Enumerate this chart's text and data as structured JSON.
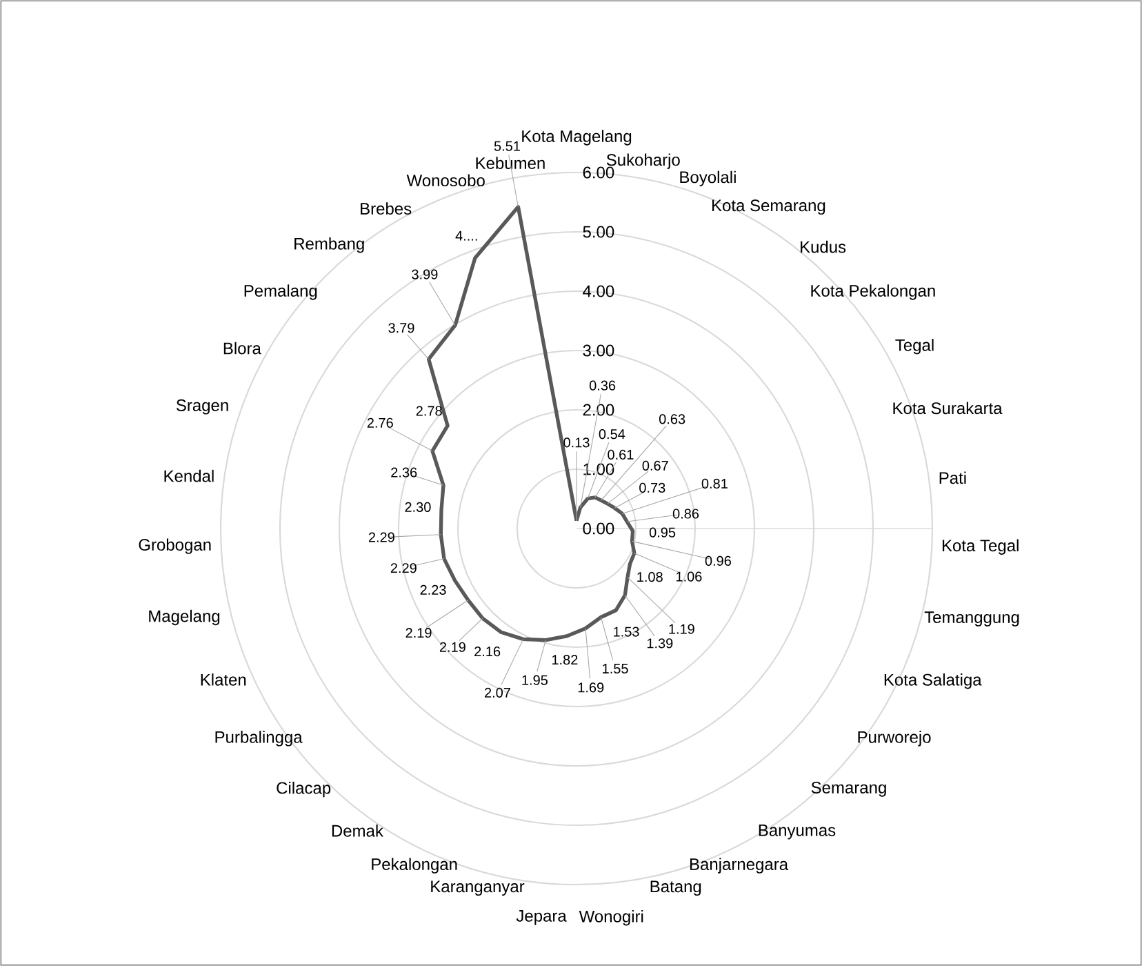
{
  "chart_data": {
    "type": "radar",
    "categories": [
      "Kota Magelang",
      "Sukoharjo",
      "Boyolali",
      "Kota Semarang",
      "Kudus",
      "Kota Pekalongan",
      "Tegal",
      "Kota Surakarta",
      "Pati",
      "Kota Tegal",
      "Temanggung",
      "Kota Salatiga",
      "Purworejo",
      "Semarang",
      "Banyumas",
      "Banjarnegara",
      "Batang",
      "Wonogiri",
      "Jepara",
      "Karanganyar",
      "Pekalongan",
      "Demak",
      "Cilacap",
      "Purbalingga",
      "Klaten",
      "Magelang",
      "Grobogan",
      "Kendal",
      "Sragen",
      "Blora",
      "Pemalang",
      "Rembang",
      "Brebes",
      "Wonosobo",
      "Kebumen"
    ],
    "series": [
      {
        "color": "#595959",
        "line_style": "solid",
        "values": [
          0.13,
          0.36,
          0.54,
          0.61,
          0.63,
          0.67,
          0.73,
          0.81,
          0.86,
          0.95,
          0.96,
          1.06,
          1.08,
          1.19,
          1.39,
          1.53,
          1.55,
          1.69,
          1.82,
          1.95,
          2.07,
          2.16,
          2.19,
          2.19,
          2.23,
          2.29,
          2.29,
          2.3,
          2.36,
          2.76,
          2.78,
          3.79,
          3.99,
          4.87,
          5.51
        ],
        "value_labels": [
          "0.13",
          "0.36",
          "0.54",
          "0.61",
          "0.63",
          "0.67",
          "0.73",
          "0.81",
          "0.86",
          "0.95",
          "0.96",
          "1.06",
          "1.08",
          "1.19",
          "1.39",
          "1.53",
          "1.55",
          "1.69",
          "1.82",
          "1.95",
          "2.07",
          "2.16",
          "2.19",
          "2.19",
          "2.23",
          "2.29",
          "2.29",
          "2.30",
          "2.36",
          "2.76",
          "2.78",
          "3.79",
          "3.99",
          "4....",
          "5.51"
        ]
      }
    ],
    "ylim": [
      0,
      6
    ],
    "yticks": [
      {
        "value": 0,
        "label": "0.00"
      },
      {
        "value": 1,
        "label": "1.00"
      },
      {
        "value": 2,
        "label": "2.00"
      },
      {
        "value": 3,
        "label": "3.00"
      },
      {
        "value": 4,
        "label": "4.00"
      },
      {
        "value": 5,
        "label": "5.00"
      },
      {
        "value": 6,
        "label": "6.00"
      }
    ],
    "grid": "y"
  }
}
